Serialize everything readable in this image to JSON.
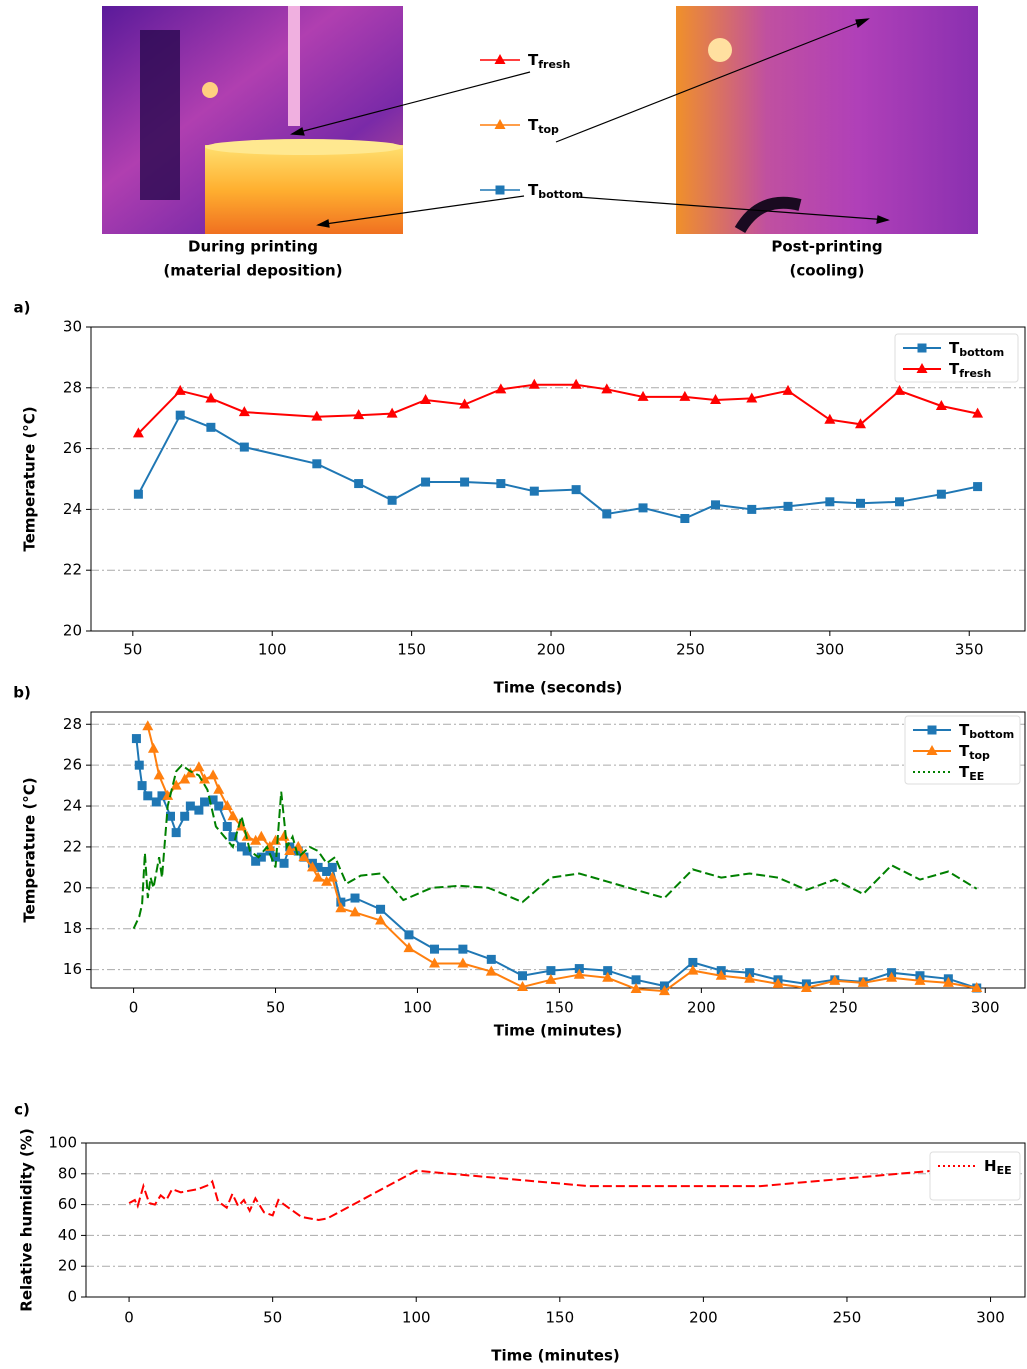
{
  "illustration": {
    "legend": [
      {
        "name": "T",
        "name_sub": "fresh",
        "color": "#ff0000",
        "marker": "triangle"
      },
      {
        "name": "T",
        "name_sub": "top",
        "color": "#ff7f0e",
        "marker": "triangle"
      },
      {
        "name": "T",
        "name_sub": "bottom",
        "color": "#1f77b4",
        "marker": "square"
      }
    ],
    "captions": [
      [
        "During printing",
        "(material deposition)"
      ],
      [
        "Post-printing",
        "(cooling)"
      ]
    ]
  },
  "chart_data": [
    {
      "type": "line",
      "panel_label": "a)",
      "xlabel": "Time (seconds)",
      "ylabel": "Temperature (°C)",
      "xlim": [
        35,
        370
      ],
      "xticks": [
        50,
        100,
        150,
        200,
        250,
        300,
        350
      ],
      "ylim": [
        20,
        30
      ],
      "yticks": [
        20,
        22,
        24,
        26,
        28,
        30
      ],
      "grid": true,
      "legend": "upper right",
      "x": [
        52,
        67,
        78,
        90,
        116,
        131,
        143,
        155,
        169,
        182,
        194,
        209,
        220,
        233,
        248,
        259,
        272,
        285,
        300,
        311,
        325,
        340,
        353
      ],
      "series": [
        {
          "name": "T",
          "name_sub": "bottom",
          "color": "#1f77b4",
          "marker": "square",
          "linestyle": "solid",
          "values": [
            24.5,
            27.1,
            26.7,
            26.05,
            25.5,
            24.85,
            24.3,
            24.9,
            24.9,
            24.85,
            24.6,
            24.65,
            23.85,
            24.05,
            23.7,
            24.15,
            24.0,
            24.1,
            24.25,
            24.2,
            24.25,
            24.5,
            24.75
          ]
        },
        {
          "name": "T",
          "name_sub": "fresh",
          "color": "#ff0000",
          "marker": "triangle",
          "linestyle": "solid",
          "values": [
            26.5,
            27.9,
            27.65,
            27.2,
            27.05,
            27.1,
            27.15,
            27.6,
            27.45,
            27.95,
            28.1,
            28.1,
            27.95,
            27.7,
            27.7,
            27.6,
            27.65,
            27.9,
            26.95,
            26.8,
            27.9,
            27.4,
            27.15
          ]
        }
      ]
    },
    {
      "type": "line",
      "panel_label": "b)",
      "xlabel": "Time (minutes)",
      "ylabel": "Temperature (°C)",
      "xlim": [
        -15,
        314
      ],
      "xticks": [
        0,
        50,
        100,
        150,
        200,
        250,
        300
      ],
      "ylim": [
        15.1,
        28.6
      ],
      "yticks": [
        16,
        18,
        20,
        22,
        24,
        26,
        28
      ],
      "grid": true,
      "legend": "upper right",
      "series": [
        {
          "name": "T",
          "name_sub": "bottom",
          "color": "#1f77b4",
          "marker": "square",
          "linestyle": "solid",
          "x": [
            1,
            2,
            3,
            5,
            8,
            10,
            13,
            15,
            18,
            20,
            23,
            25,
            28,
            30,
            33,
            35,
            38,
            40,
            43,
            45,
            48,
            50,
            53,
            55,
            58,
            60,
            63,
            65,
            68,
            70,
            73,
            78,
            87,
            97,
            106,
            116,
            126,
            137,
            147,
            157,
            167,
            177,
            187,
            197,
            207,
            217,
            227,
            237,
            247,
            257,
            267,
            277,
            287,
            297
          ],
          "values": [
            27.3,
            26,
            25,
            24.5,
            24.2,
            24.5,
            23.5,
            22.7,
            23.5,
            24,
            23.8,
            24.2,
            24.3,
            24,
            23,
            22.5,
            22,
            21.8,
            21.3,
            21.5,
            21.8,
            21.5,
            21.2,
            22,
            21.8,
            21.5,
            21.2,
            21,
            20.8,
            21,
            19.3,
            19.5,
            18.95,
            17.7,
            17.0,
            17.0,
            16.5,
            15.7,
            15.95,
            16.05,
            15.95,
            15.5,
            15.2,
            16.35,
            15.95,
            15.85,
            15.5,
            15.3,
            15.5,
            15.4,
            15.85,
            15.7,
            15.55,
            15.1
          ]
        },
        {
          "name": "T",
          "name_sub": "top",
          "color": "#ff7f0e",
          "marker": "triangle",
          "linestyle": "solid",
          "x": [
            5,
            7,
            9,
            12,
            15,
            18,
            20,
            23,
            25,
            28,
            30,
            33,
            35,
            38,
            40,
            43,
            45,
            48,
            50,
            53,
            55,
            58,
            60,
            63,
            65,
            68,
            70,
            73,
            78,
            87,
            97,
            106,
            116,
            126,
            137,
            147,
            157,
            167,
            177,
            187,
            197,
            207,
            217,
            227,
            237,
            247,
            257,
            267,
            277,
            287,
            297
          ],
          "values": [
            27.9,
            26.8,
            25.5,
            24.5,
            25,
            25.3,
            25.6,
            25.9,
            25.3,
            25.5,
            24.8,
            24,
            23.5,
            23,
            22.5,
            22.3,
            22.5,
            22,
            22.3,
            22.5,
            21.8,
            22,
            21.5,
            21,
            20.5,
            20.3,
            20.5,
            19,
            18.8,
            18.4,
            17.05,
            16.3,
            16.3,
            15.9,
            15.15,
            15.5,
            15.75,
            15.6,
            15.05,
            14.95,
            15.95,
            15.7,
            15.55,
            15.3,
            15.1,
            15.45,
            15.35,
            15.6,
            15.45,
            15.35,
            15.1
          ]
        },
        {
          "name": "T",
          "name_sub": "EE",
          "color": "#008000",
          "marker": "none",
          "linestyle": "dashed",
          "legend_linestyle": "dotted",
          "x": [
            0,
            2,
            3,
            4,
            5,
            6,
            7,
            9,
            10,
            12,
            15,
            17,
            20,
            23,
            26,
            29,
            32,
            35,
            38,
            41,
            44,
            47,
            50,
            52,
            54,
            56,
            58,
            62,
            65,
            68,
            71,
            75,
            80,
            87,
            95,
            105,
            115,
            125,
            137,
            147,
            157,
            167,
            177,
            187,
            197,
            207,
            217,
            227,
            237,
            247,
            257,
            267,
            277,
            287,
            297
          ],
          "values": [
            18,
            18.6,
            19.2,
            21.7,
            19.5,
            20.5,
            20,
            21.5,
            20.5,
            24,
            25.7,
            26,
            25.7,
            25.5,
            24.8,
            23,
            22.5,
            22,
            23.5,
            21.8,
            21.5,
            22,
            21,
            24.7,
            22,
            22.5,
            21.5,
            22,
            21.8,
            21.2,
            21.5,
            20.2,
            20.6,
            20.7,
            19.4,
            20.0,
            20.1,
            20.0,
            19.3,
            20.5,
            20.7,
            20.3,
            19.9,
            19.5,
            20.9,
            20.5,
            20.7,
            20.5,
            19.9,
            20.4,
            19.7,
            21.1,
            20.4,
            20.8,
            19.95
          ]
        }
      ]
    },
    {
      "type": "line",
      "panel_label": "c)",
      "xlabel": "Time (minutes)",
      "ylabel": "Relative humidity (%)",
      "xlim": [
        -15,
        312
      ],
      "xticks": [
        0,
        50,
        100,
        150,
        200,
        250,
        300
      ],
      "ylim": [
        0,
        100
      ],
      "yticks": [
        0,
        20,
        40,
        60,
        80,
        100
      ],
      "grid": true,
      "legend": "upper right",
      "series": [
        {
          "name": "H",
          "name_sub": "EE",
          "color": "#ff0000",
          "marker": "none",
          "linestyle": "dashed",
          "legend_linestyle": "dotted",
          "x": [
            0,
            2,
            3,
            5,
            7,
            9,
            11,
            13,
            15,
            18,
            21,
            24,
            28,
            29,
            31,
            34,
            36,
            38,
            40,
            42,
            44,
            47,
            50,
            52,
            54,
            57,
            60,
            63,
            66,
            69,
            100,
            160,
            220,
            280
          ],
          "values": [
            61,
            63,
            59,
            72,
            61,
            60,
            66,
            63,
            70,
            68,
            69,
            70,
            73,
            75,
            62,
            58,
            67,
            59,
            63,
            56,
            64,
            55,
            53,
            63,
            60,
            56,
            52,
            51,
            50,
            51,
            82,
            72,
            72,
            82
          ]
        }
      ]
    }
  ]
}
